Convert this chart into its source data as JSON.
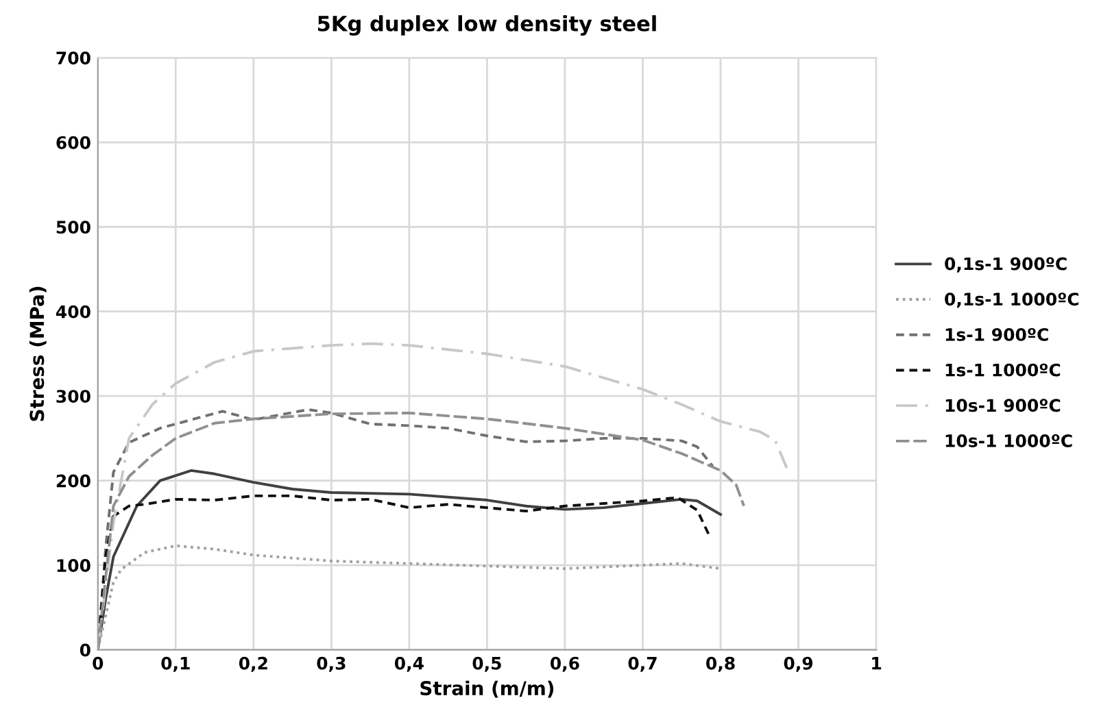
{
  "chart_data": {
    "type": "line",
    "title": "5Kg duplex low density steel",
    "xlabel": "Strain (m/m)",
    "ylabel": "Stress (MPa)",
    "xlim": [
      0,
      1
    ],
    "ylim": [
      0,
      700
    ],
    "xticks": [
      0,
      {
        "value": 0.1,
        "label": "0,1"
      },
      {
        "value": 0.2,
        "label": "0,2"
      },
      {
        "value": 0.3,
        "label": "0,3"
      },
      {
        "value": 0.4,
        "label": "0,4"
      },
      {
        "value": 0.5,
        "label": "0,5"
      },
      {
        "value": 0.6,
        "label": "0,6"
      },
      {
        "value": 0.7,
        "label": "0,7"
      },
      {
        "value": 0.8,
        "label": "0,8"
      },
      {
        "value": 0.9,
        "label": "0,9"
      },
      1
    ],
    "yticks": [
      0,
      100,
      200,
      300,
      400,
      500,
      600,
      700
    ],
    "grid": true,
    "legend": "right",
    "marker": "none",
    "series": [
      {
        "name": "0,1s-1 900ºC",
        "color": "#404040",
        "line_style": "solid",
        "x": [
          0,
          0.01,
          0.02,
          0.05,
          0.08,
          0.12,
          0.15,
          0.2,
          0.25,
          0.3,
          0.4,
          0.5,
          0.55,
          0.6,
          0.65,
          0.7,
          0.75,
          0.77,
          0.8
        ],
        "values": [
          0,
          60,
          110,
          170,
          200,
          212,
          208,
          198,
          190,
          186,
          184,
          177,
          170,
          166,
          168,
          173,
          178,
          176,
          160
        ]
      },
      {
        "name": "0,1s-1 1000ºC",
        "color": "#a0a0a0",
        "line_style": "dotted",
        "x": [
          0,
          0.02,
          0.03,
          0.06,
          0.1,
          0.15,
          0.2,
          0.3,
          0.4,
          0.5,
          0.6,
          0.7,
          0.75,
          0.8
        ],
        "values": [
          0,
          80,
          95,
          115,
          123,
          119,
          112,
          105,
          102,
          99,
          96,
          100,
          102,
          96
        ]
      },
      {
        "name": "1s-1 900ºC",
        "color": "#707070",
        "line_style": "dashed",
        "x": [
          0,
          0.01,
          0.02,
          0.04,
          0.08,
          0.12,
          0.16,
          0.2,
          0.27,
          0.3,
          0.35,
          0.4,
          0.45,
          0.5,
          0.55,
          0.6,
          0.65,
          0.7,
          0.75,
          0.77,
          0.79
        ],
        "values": [
          0,
          120,
          210,
          245,
          262,
          272,
          282,
          272,
          284,
          280,
          267,
          265,
          262,
          253,
          246,
          247,
          250,
          250,
          247,
          240,
          217
        ]
      },
      {
        "name": "1s-1 1000ºC",
        "color": "#101010",
        "line_style": "dashed",
        "x": [
          0,
          0.01,
          0.02,
          0.04,
          0.06,
          0.1,
          0.15,
          0.2,
          0.25,
          0.3,
          0.35,
          0.4,
          0.45,
          0.5,
          0.55,
          0.6,
          0.65,
          0.7,
          0.745,
          0.77,
          0.785
        ],
        "values": [
          0,
          110,
          158,
          170,
          172,
          178,
          177,
          182,
          182,
          177,
          178,
          168,
          172,
          168,
          164,
          170,
          173,
          176,
          180,
          165,
          136
        ]
      },
      {
        "name": "10s-1 900ºC",
        "color": "#c8c8c8",
        "line_style": "dashdot",
        "x": [
          0,
          0.02,
          0.04,
          0.07,
          0.1,
          0.15,
          0.2,
          0.3,
          0.35,
          0.4,
          0.5,
          0.6,
          0.7,
          0.75,
          0.8,
          0.85,
          0.87,
          0.885
        ],
        "values": [
          0,
          150,
          250,
          290,
          315,
          340,
          353,
          360,
          362,
          360,
          350,
          335,
          308,
          290,
          270,
          258,
          248,
          215
        ]
      },
      {
        "name": "10s-1 1000ºC",
        "color": "#909090",
        "line_style": "longdash",
        "x": [
          0,
          0.02,
          0.04,
          0.07,
          0.1,
          0.15,
          0.2,
          0.3,
          0.4,
          0.5,
          0.6,
          0.7,
          0.75,
          0.8,
          0.82,
          0.83
        ],
        "values": [
          0,
          170,
          205,
          230,
          250,
          268,
          273,
          279,
          280,
          273,
          262,
          248,
          232,
          212,
          195,
          170
        ]
      }
    ]
  }
}
